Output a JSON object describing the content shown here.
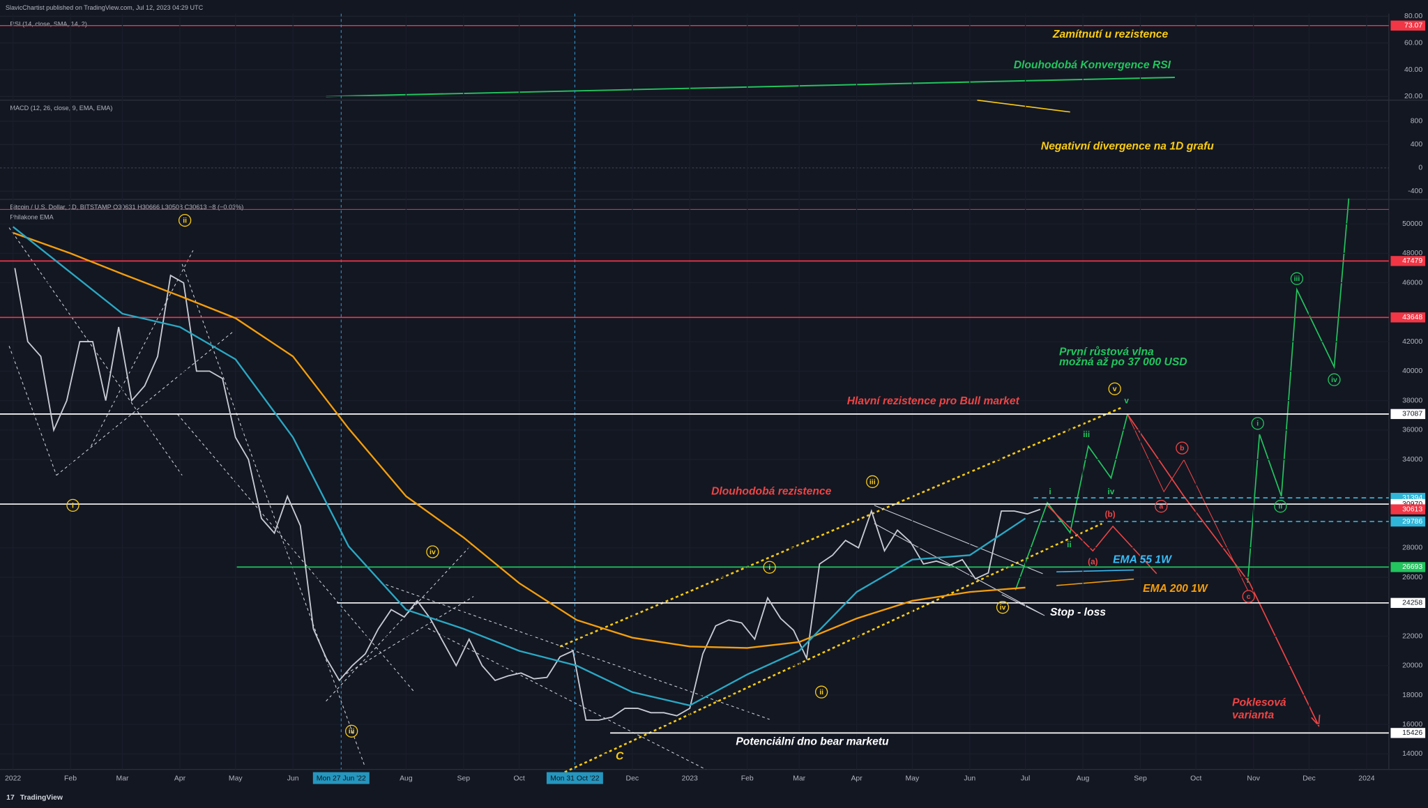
{
  "header": "SlavicChartist published on TradingView.com, Jul 12, 2023 04:29 UTC",
  "footer": "TradingView",
  "rsi": {
    "label": "RSI (14, close, SMA, 14, 2)",
    "ylim": [
      18.6,
      82
    ],
    "yticks": [
      {
        "value": 80,
        "label": "80.00"
      },
      {
        "value": 60,
        "label": "60.00"
      },
      {
        "value": 40,
        "label": "40.00"
      },
      {
        "value": 20,
        "label": "20.00"
      }
    ],
    "level": {
      "value": 73.07,
      "label": "73.07",
      "color": "#f23645"
    }
  },
  "macd": {
    "label": "MACD (12, 26, close, 9, EMA, EMA)",
    "ylim": [
      -525,
      1130
    ],
    "yticks": [
      800,
      400,
      0,
      -400
    ]
  },
  "chart_data": {
    "type": "line",
    "title": "Bitcoin / U.S. Dollar, 1D, BITSTAMP  O30631 H30666 L30508 C30613 −8 (−0.03%)",
    "subtitle": "Philakone EMA",
    "xlim": [
      "2021-12-25",
      "2024-01-13"
    ],
    "ylim": [
      12950,
      51600
    ],
    "yticks": [
      14000,
      16000,
      18000,
      20000,
      22000,
      26000,
      28000,
      34000,
      36000,
      38000,
      40000,
      42000,
      46000,
      48000,
      50000
    ],
    "xticks": [
      {
        "value": "2022-01-01",
        "label": "2022"
      },
      {
        "value": "2022-02-01",
        "label": "Feb"
      },
      {
        "value": "2022-03-01",
        "label": "Mar"
      },
      {
        "value": "2022-04-01",
        "label": "Apr"
      },
      {
        "value": "2022-05-01",
        "label": "May"
      },
      {
        "value": "2022-06-01",
        "label": "Jun"
      },
      {
        "value": "2022-08-01",
        "label": "Aug"
      },
      {
        "value": "2022-09-01",
        "label": "Sep"
      },
      {
        "value": "2022-10-01",
        "label": "Oct"
      },
      {
        "value": "2022-12-01",
        "label": "Dec"
      },
      {
        "value": "2023-01-01",
        "label": "2023"
      },
      {
        "value": "2023-02-01",
        "label": "Feb"
      },
      {
        "value": "2023-03-01",
        "label": "Mar"
      },
      {
        "value": "2023-04-01",
        "label": "Apr"
      },
      {
        "value": "2023-05-01",
        "label": "May"
      },
      {
        "value": "2023-06-01",
        "label": "Jun"
      },
      {
        "value": "2023-07-01",
        "label": "Jul"
      },
      {
        "value": "2023-08-01",
        "label": "Aug"
      },
      {
        "value": "2023-09-01",
        "label": "Sep"
      },
      {
        "value": "2023-10-01",
        "label": "Oct"
      },
      {
        "value": "2023-11-01",
        "label": "Nov"
      },
      {
        "value": "2023-12-01",
        "label": "Dec"
      },
      {
        "value": "2024-01-01",
        "label": "2024"
      }
    ],
    "markers": [
      {
        "value": "2022-06-27",
        "label": "Mon 27 Jun '22"
      },
      {
        "value": "2022-10-31",
        "label": "Mon 31 Oct '22"
      }
    ],
    "series": [
      {
        "color": "#c9ccd4",
        "x": [
          "2022-01-02",
          "2022-01-09",
          "2022-01-16",
          "2022-01-23",
          "2022-01-30",
          "2022-02-06",
          "2022-02-13",
          "2022-02-20",
          "2022-02-27",
          "2022-03-06",
          "2022-03-13",
          "2022-03-20",
          "2022-03-27",
          "2022-04-03",
          "2022-04-10",
          "2022-04-17",
          "2022-04-24",
          "2022-05-01",
          "2022-05-08",
          "2022-05-15",
          "2022-05-22",
          "2022-05-29",
          "2022-06-05",
          "2022-06-12",
          "2022-06-19",
          "2022-06-26",
          "2022-07-03",
          "2022-07-10",
          "2022-07-17",
          "2022-07-24",
          "2022-07-31",
          "2022-08-07",
          "2022-08-14",
          "2022-08-21",
          "2022-08-28",
          "2022-09-04",
          "2022-09-11",
          "2022-09-18",
          "2022-09-25",
          "2022-10-02",
          "2022-10-09",
          "2022-10-16",
          "2022-10-23",
          "2022-10-30",
          "2022-11-06",
          "2022-11-13",
          "2022-11-20",
          "2022-11-27",
          "2022-12-04",
          "2022-12-11",
          "2022-12-18",
          "2022-12-25",
          "2023-01-01",
          "2023-01-08",
          "2023-01-15",
          "2023-01-22",
          "2023-01-29",
          "2023-02-05",
          "2023-02-12",
          "2023-02-19",
          "2023-02-26",
          "2023-03-05",
          "2023-03-12",
          "2023-03-19",
          "2023-03-26",
          "2023-04-02",
          "2023-04-09",
          "2023-04-16",
          "2023-04-23",
          "2023-04-30",
          "2023-05-07",
          "2023-05-14",
          "2023-05-21",
          "2023-05-28",
          "2023-06-04",
          "2023-06-11",
          "2023-06-18",
          "2023-06-25",
          "2023-07-02",
          "2023-07-09"
        ],
        "values": [
          47000,
          42000,
          41000,
          36000,
          38000,
          42000,
          42000,
          38000,
          43000,
          38000,
          39000,
          41000,
          46500,
          46000,
          40000,
          40000,
          39500,
          35500,
          34000,
          30000,
          29000,
          31500,
          29500,
          22500,
          20500,
          19000,
          20000,
          20800,
          22500,
          23800,
          23300,
          24400,
          23200,
          21600,
          20000,
          21800,
          20000,
          19000,
          19300,
          19500,
          19100,
          19200,
          20600,
          21000,
          16300,
          16300,
          16500,
          17100,
          17100,
          16800,
          16800,
          16600,
          17100,
          20800,
          22700,
          23100,
          22900,
          21800,
          24600,
          23200,
          22400,
          20500,
          26900,
          27500,
          28500,
          28000,
          30500,
          27800,
          29200,
          28400,
          26900,
          27100,
          26800,
          27200,
          25900,
          26300,
          30500,
          30500,
          30300,
          30613
        ]
      },
      {
        "color": "#f59e0b",
        "x": [
          "2022-01-01",
          "2022-02-01",
          "2022-03-01",
          "2022-04-01",
          "2022-05-01",
          "2022-06-01",
          "2022-07-01",
          "2022-08-01",
          "2022-09-01",
          "2022-10-01",
          "2022-11-01",
          "2022-12-01",
          "2023-01-01",
          "2023-02-01",
          "2023-03-01",
          "2023-04-01",
          "2023-05-01",
          "2023-06-01",
          "2023-07-01"
        ],
        "values": [
          49400,
          48000,
          46600,
          45100,
          43600,
          41000,
          36100,
          31500,
          28700,
          25600,
          23100,
          21900,
          21300,
          21200,
          21600,
          23200,
          24400,
          25000,
          25300
        ]
      },
      {
        "color": "#2aa8c4",
        "x": [
          "2022-01-01",
          "2022-02-01",
          "2022-03-01",
          "2022-04-01",
          "2022-05-01",
          "2022-06-01",
          "2022-07-01",
          "2022-08-01",
          "2022-09-01",
          "2022-10-01",
          "2022-11-01",
          "2022-12-01",
          "2023-01-01",
          "2023-02-01",
          "2023-03-01",
          "2023-04-01",
          "2023-05-01",
          "2023-06-01",
          "2023-07-01"
        ],
        "values": [
          49800,
          46700,
          43900,
          43000,
          40800,
          35500,
          28100,
          23800,
          22500,
          21000,
          20000,
          18200,
          17300,
          19400,
          21000,
          25000,
          27200,
          27500,
          30000
        ]
      }
    ],
    "levels": [
      {
        "value": 47479,
        "color": "#f23645",
        "style": "solid"
      },
      {
        "value": 43648,
        "color": "#f23645",
        "style": "solid"
      },
      {
        "value": 37087,
        "color": "#ffffff",
        "style": "solid"
      },
      {
        "value": 31394,
        "color": "#2fb5d8",
        "style": "dashed"
      },
      {
        "value": 30970,
        "color": "#ffffff",
        "style": "solid"
      },
      {
        "value": 30613,
        "color": "#f23645",
        "style": "none"
      },
      {
        "value": 29786,
        "color": "#2fb5d8",
        "style": "dashed"
      },
      {
        "value": 26693,
        "color": "#22c55e",
        "style": "solid"
      },
      {
        "value": 24258,
        "color": "#ffffff",
        "style": "solid"
      },
      {
        "value": 15426,
        "color": "#ffffff",
        "style": "solid"
      }
    ]
  },
  "annotations": [
    {
      "text": "Zamítnutí u rezistence",
      "color": "#facc15"
    },
    {
      "text": "Dlouhodobá Konvergence RSI",
      "color": "#22c55e"
    },
    {
      "text": "Negativní divergence na 1D grafu",
      "color": "#facc15"
    },
    {
      "text": "První růstová vlna",
      "color": "#22c55e"
    },
    {
      "text": "možná až po 37 000 USD",
      "color": "#22c55e"
    },
    {
      "text": "Hlavní rezistence pro Bull market",
      "color": "#ef4444"
    },
    {
      "text": "Dlouhodobá rezistence",
      "color": "#ef4444"
    },
    {
      "text": "EMA 55 1W",
      "color": "#38bdf8"
    },
    {
      "text": "EMA 200 1W",
      "color": "#f59e0b"
    },
    {
      "text": "Stop - loss",
      "color": "#ffffff"
    },
    {
      "text": "Potenciální dno bear marketu",
      "color": "#ffffff"
    },
    {
      "text": "Poklesová",
      "color": "#ef4444"
    },
    {
      "text": "varianta",
      "color": "#ef4444"
    },
    {
      "text": "C",
      "color": "#facc15"
    }
  ],
  "waves": [
    {
      "text": "ii",
      "color": "#facc15",
      "circled": true
    },
    {
      "text": "i",
      "color": "#facc15",
      "circled": true
    },
    {
      "text": "iv",
      "color": "#facc15",
      "circled": true
    },
    {
      "text": "iii",
      "color": "#facc15",
      "circled": true
    },
    {
      "text": "iii",
      "color": "#facc15",
      "circled": true
    },
    {
      "text": "i",
      "color": "#facc15",
      "circled": true
    },
    {
      "text": "ii",
      "color": "#facc15",
      "circled": true
    },
    {
      "text": "iv",
      "color": "#facc15",
      "circled": true
    },
    {
      "text": "v",
      "color": "#facc15",
      "circled": true
    },
    {
      "text": "iii",
      "color": "#22c55e",
      "circled": true
    },
    {
      "text": "iv",
      "color": "#22c55e",
      "circled": true
    },
    {
      "text": "i",
      "color": "#22c55e",
      "circled": true
    },
    {
      "text": "ii",
      "color": "#22c55e",
      "circled": true
    },
    {
      "text": "b",
      "color": "#ef4444",
      "circled": true
    },
    {
      "text": "a",
      "color": "#ef4444",
      "circled": true
    },
    {
      "text": "c",
      "color": "#ef4444",
      "circled": true
    },
    {
      "text": "(b)",
      "color": "#ef4444",
      "circled": false
    },
    {
      "text": "(a)",
      "color": "#ef4444",
      "circled": false
    },
    {
      "text": "i",
      "color": "#22c55e",
      "circled": false
    },
    {
      "text": "ii",
      "color": "#22c55e",
      "circled": false
    },
    {
      "text": "iii",
      "color": "#22c55e",
      "circled": false
    },
    {
      "text": "iv",
      "color": "#22c55e",
      "circled": false
    },
    {
      "text": "v",
      "color": "#22c55e",
      "circled": false
    }
  ]
}
